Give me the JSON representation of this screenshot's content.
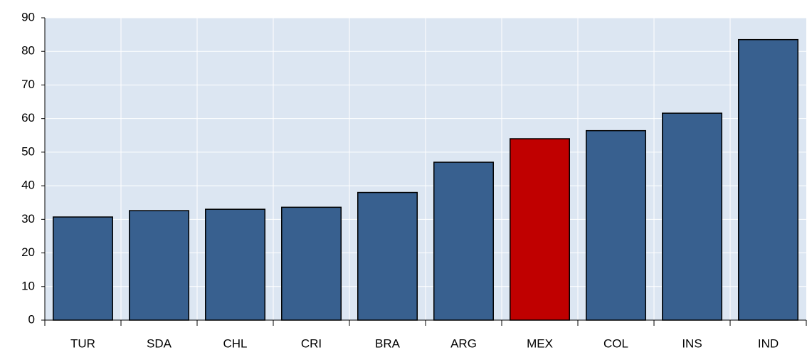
{
  "chart_data": {
    "type": "bar",
    "categories": [
      "TUR",
      "SDA",
      "CHL",
      "CRI",
      "BRA",
      "ARG",
      "MEX",
      "COL",
      "INS",
      "IND"
    ],
    "values": [
      30.7,
      32.6,
      33.0,
      33.6,
      38.0,
      47.0,
      54.0,
      56.4,
      61.6,
      83.5
    ],
    "colors": [
      "#38608f",
      "#38608f",
      "#38608f",
      "#38608f",
      "#38608f",
      "#38608f",
      "#c00000",
      "#38608f",
      "#38608f",
      "#38608f"
    ],
    "ylim": [
      0,
      90
    ],
    "yticks": [
      0,
      10,
      20,
      30,
      40,
      50,
      60,
      70,
      80,
      90
    ],
    "grid": true
  }
}
